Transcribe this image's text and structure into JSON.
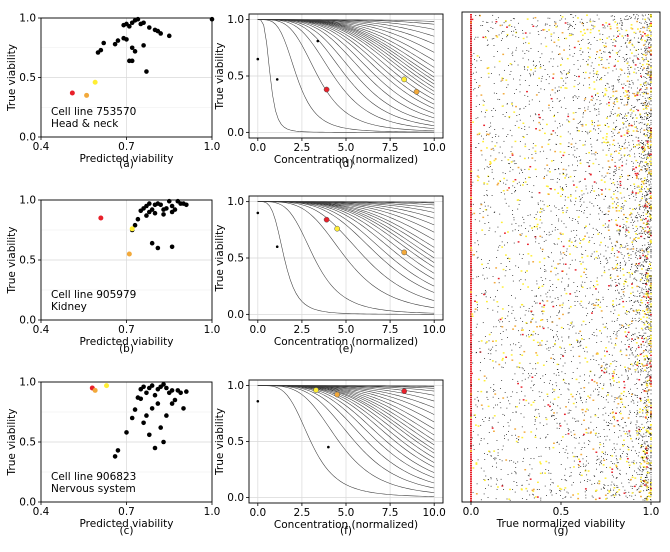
{
  "chart_data": [
    {
      "id": "a",
      "type": "scatter",
      "caption": "(a)",
      "title": "",
      "xlabel": "Predicted viability",
      "ylabel": "True viability",
      "xlim": [
        0.4,
        1.0
      ],
      "ylim": [
        0.0,
        1.0
      ],
      "xticks": [
        "0.4",
        "0.7",
        "1.0"
      ],
      "yticks": [
        "0.0",
        "0.5",
        "1.0"
      ],
      "grid": true,
      "annotation": [
        "Cell line 753570",
        "Head & neck"
      ],
      "points": [
        [
          0.6,
          0.71
        ],
        [
          0.61,
          0.73
        ],
        [
          0.62,
          0.79
        ],
        [
          0.66,
          0.78
        ],
        [
          0.67,
          0.81
        ],
        [
          0.69,
          0.94
        ],
        [
          0.7,
          0.95
        ],
        [
          0.71,
          0.93
        ],
        [
          0.72,
          0.96
        ],
        [
          0.73,
          0.98
        ],
        [
          0.74,
          0.99
        ],
        [
          0.75,
          0.95
        ],
        [
          0.76,
          0.96
        ],
        [
          0.7,
          0.82
        ],
        [
          0.72,
          0.75
        ],
        [
          0.73,
          0.72
        ],
        [
          0.78,
          0.92
        ],
        [
          0.8,
          0.9
        ],
        [
          0.81,
          0.89
        ],
        [
          0.82,
          0.87
        ],
        [
          0.76,
          0.77
        ],
        [
          0.77,
          0.55
        ],
        [
          0.71,
          0.64
        ],
        [
          0.72,
          0.64
        ],
        [
          0.85,
          0.85
        ],
        [
          1.0,
          0.99
        ],
        [
          0.69,
          0.83
        ]
      ],
      "highlight_points": [
        {
          "x": 0.51,
          "y": 0.37,
          "color": "#e8202a"
        },
        {
          "x": 0.56,
          "y": 0.35,
          "color": "#f2a93b"
        },
        {
          "x": 0.59,
          "y": 0.46,
          "color": "#ffee33"
        }
      ]
    },
    {
      "id": "b",
      "type": "scatter",
      "caption": "(b)",
      "title": "",
      "xlabel": "Predicted viability",
      "ylabel": "True viability",
      "xlim": [
        0.4,
        1.0
      ],
      "ylim": [
        0.0,
        1.0
      ],
      "xticks": [
        "0.4",
        "0.7",
        "1.0"
      ],
      "yticks": [
        "0.0",
        "0.5",
        "1.0"
      ],
      "grid": true,
      "annotation": [
        "Cell line 905979",
        "Kidney"
      ],
      "points": [
        [
          0.73,
          0.79
        ],
        [
          0.74,
          0.84
        ],
        [
          0.75,
          0.91
        ],
        [
          0.76,
          0.93
        ],
        [
          0.77,
          0.95
        ],
        [
          0.78,
          0.97
        ],
        [
          0.79,
          0.92
        ],
        [
          0.8,
          0.96
        ],
        [
          0.81,
          0.97
        ],
        [
          0.82,
          0.96
        ],
        [
          0.83,
          0.92
        ],
        [
          0.84,
          0.93
        ],
        [
          0.85,
          0.99
        ],
        [
          0.86,
          0.95
        ],
        [
          0.87,
          0.92
        ],
        [
          0.88,
          0.99
        ],
        [
          0.89,
          0.97
        ],
        [
          0.9,
          0.97
        ],
        [
          0.91,
          0.96
        ],
        [
          0.78,
          0.9
        ],
        [
          0.8,
          0.89
        ],
        [
          0.83,
          0.88
        ],
        [
          0.86,
          0.9
        ],
        [
          0.79,
          0.64
        ],
        [
          0.81,
          0.6
        ],
        [
          0.86,
          0.61
        ],
        [
          0.72,
          0.75
        ],
        [
          0.77,
          0.87
        ]
      ],
      "highlight_points": [
        {
          "x": 0.61,
          "y": 0.85,
          "color": "#e8202a"
        },
        {
          "x": 0.71,
          "y": 0.55,
          "color": "#f2a93b"
        },
        {
          "x": 0.72,
          "y": 0.76,
          "color": "#ffee33"
        }
      ]
    },
    {
      "id": "c",
      "type": "scatter",
      "caption": "(c)",
      "title": "",
      "xlabel": "Predicted viability",
      "ylabel": "True viability",
      "xlim": [
        0.4,
        1.0
      ],
      "ylim": [
        0.0,
        1.0
      ],
      "xticks": [
        "0.4",
        "0.7",
        "1.0"
      ],
      "yticks": [
        "0.0",
        "0.5",
        "1.0"
      ],
      "grid": true,
      "annotation": [
        "Cell line 906823",
        "Nervous system"
      ],
      "points": [
        [
          0.66,
          0.38
        ],
        [
          0.67,
          0.43
        ],
        [
          0.7,
          0.58
        ],
        [
          0.72,
          0.7
        ],
        [
          0.73,
          0.77
        ],
        [
          0.74,
          0.87
        ],
        [
          0.75,
          0.94
        ],
        [
          0.76,
          0.96
        ],
        [
          0.77,
          0.91
        ],
        [
          0.78,
          0.95
        ],
        [
          0.79,
          0.97
        ],
        [
          0.8,
          0.89
        ],
        [
          0.81,
          0.94
        ],
        [
          0.82,
          0.96
        ],
        [
          0.83,
          0.98
        ],
        [
          0.84,
          0.95
        ],
        [
          0.85,
          0.91
        ],
        [
          0.86,
          0.93
        ],
        [
          0.87,
          0.85
        ],
        [
          0.88,
          0.93
        ],
        [
          0.89,
          0.91
        ],
        [
          0.9,
          0.78
        ],
        [
          0.91,
          0.92
        ],
        [
          0.76,
          0.66
        ],
        [
          0.78,
          0.56
        ],
        [
          0.8,
          0.45
        ],
        [
          0.82,
          0.62
        ],
        [
          0.84,
          0.72
        ],
        [
          0.83,
          0.5
        ],
        [
          0.79,
          0.78
        ],
        [
          0.81,
          0.82
        ],
        [
          0.75,
          0.86
        ],
        [
          0.86,
          0.82
        ],
        [
          0.77,
          0.72
        ]
      ],
      "highlight_points": [
        {
          "x": 0.58,
          "y": 0.95,
          "color": "#e8202a"
        },
        {
          "x": 0.59,
          "y": 0.93,
          "color": "#f2a93b"
        },
        {
          "x": 0.63,
          "y": 0.97,
          "color": "#ffee33"
        }
      ]
    },
    {
      "id": "d",
      "type": "line",
      "caption": "(d)",
      "title": "",
      "xlabel": "Concentration (normalized)",
      "ylabel": "True viability",
      "xlim": [
        -0.5,
        10.5
      ],
      "ylim": [
        -0.05,
        1.05
      ],
      "xticks": [
        "0.0",
        "2.5",
        "5.0",
        "7.5",
        "10.0"
      ],
      "yticks": [
        "0.0",
        "0.5",
        "1.0"
      ],
      "grid": true,
      "curve_ic50": [
        0.7,
        2.2,
        3.4,
        4.3,
        5.0,
        5.6,
        6.2,
        6.7,
        7.2,
        7.6,
        8.0,
        8.4,
        8.7,
        9.0,
        9.3,
        9.6,
        9.9,
        10.3,
        10.8,
        11.5,
        12.5,
        13.8,
        15.5,
        18.0,
        22.0,
        28.0
      ],
      "curve_slope": 4,
      "markers": [
        {
          "x": 0.0,
          "y": 0.65,
          "color": "#000000"
        },
        {
          "x": 1.1,
          "y": 0.47,
          "color": "#000000"
        },
        {
          "x": 3.4,
          "y": 0.81,
          "color": "#000000"
        },
        {
          "x": 3.9,
          "y": 0.38,
          "color": "#e8202a"
        },
        {
          "x": 8.3,
          "y": 0.47,
          "color": "#ffee33"
        },
        {
          "x": 9.0,
          "y": 0.36,
          "color": "#f2a93b"
        }
      ]
    },
    {
      "id": "e",
      "type": "line",
      "caption": "(e)",
      "title": "",
      "xlabel": "Concentration (normalized)",
      "ylabel": "True viability",
      "xlim": [
        -0.5,
        10.5
      ],
      "ylim": [
        -0.05,
        1.05
      ],
      "xticks": [
        "0.0",
        "2.5",
        "5.0",
        "7.5",
        "10.0"
      ],
      "yticks": [
        "0.0",
        "0.5",
        "1.0"
      ],
      "grid": true,
      "curve_ic50": [
        1.5,
        3.2,
        5.0,
        6.1,
        7.0,
        7.6,
        8.2,
        8.7,
        9.2,
        9.6,
        10.0,
        10.5,
        11.0,
        11.8,
        12.8,
        14.0,
        15.5,
        17.5,
        20.0,
        24.0,
        30.0,
        38.0
      ],
      "curve_slope": 4,
      "markers": [
        {
          "x": 0.0,
          "y": 0.9,
          "color": "#000000"
        },
        {
          "x": 1.1,
          "y": 0.6,
          "color": "#000000"
        },
        {
          "x": 3.9,
          "y": 0.84,
          "color": "#e8202a"
        },
        {
          "x": 4.5,
          "y": 0.76,
          "color": "#ffee33"
        },
        {
          "x": 8.3,
          "y": 0.55,
          "color": "#f2a93b"
        }
      ]
    },
    {
      "id": "f",
      "type": "line",
      "caption": "(f)",
      "title": "",
      "xlabel": "Concentration (normalized)",
      "ylabel": "True viability",
      "xlim": [
        -0.5,
        10.5
      ],
      "ylim": [
        -0.05,
        1.05
      ],
      "xticks": [
        "0.0",
        "2.5",
        "5.0",
        "7.5",
        "10.0"
      ],
      "yticks": [
        "0.0",
        "0.5",
        "1.0"
      ],
      "grid": true,
      "curve_ic50": [
        3.0,
        4.6,
        5.5,
        6.2,
        6.8,
        7.3,
        7.8,
        8.2,
        8.6,
        9.0,
        9.3,
        9.7,
        10.1,
        10.6,
        11.2,
        12.0,
        13.0,
        14.2,
        15.8,
        18.0,
        21.0,
        25.0,
        31.0,
        40.0
      ],
      "curve_slope": 4,
      "markers": [
        {
          "x": 0.0,
          "y": 0.86,
          "color": "#000000"
        },
        {
          "x": 3.3,
          "y": 0.96,
          "color": "#ffee33"
        },
        {
          "x": 4.5,
          "y": 0.92,
          "color": "#f2a93b"
        },
        {
          "x": 8.3,
          "y": 0.95,
          "color": "#e8202a"
        },
        {
          "x": 4.0,
          "y": 0.45,
          "color": "#000000"
        }
      ]
    },
    {
      "id": "g",
      "type": "scatter",
      "caption": "(g)",
      "title": "",
      "xlabel": "True normalized viability",
      "ylabel": "",
      "xlim": [
        -0.05,
        1.05
      ],
      "ylim": [
        0,
        1
      ],
      "xticks": [
        "0.0",
        "0.5",
        "1.0"
      ],
      "yticks": [],
      "grid": false,
      "series_colors": [
        "#000000",
        "#e8202a",
        "#f2a93b",
        "#ffee33"
      ]
    }
  ]
}
